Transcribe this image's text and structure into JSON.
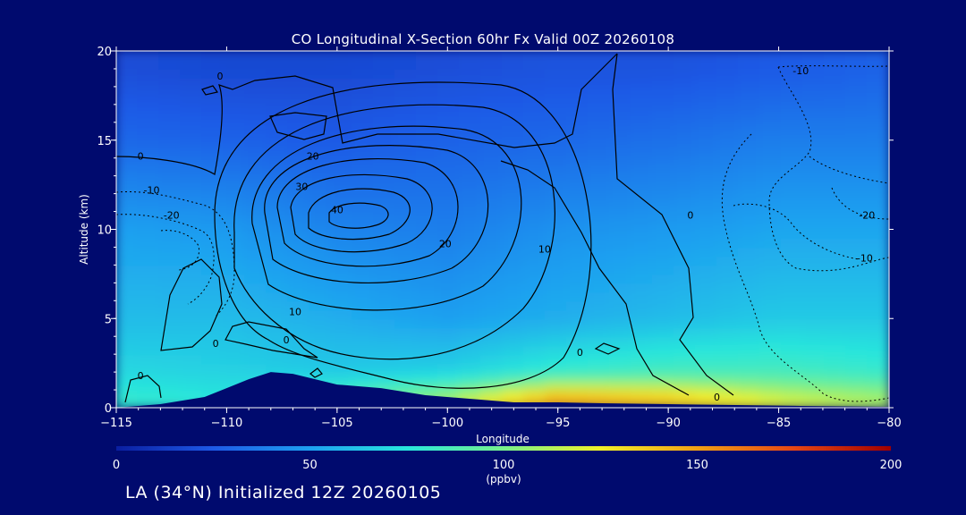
{
  "chart_data": {
    "type": "heatmap",
    "title": "CO Longitudinal X-Section 60hr  Fx Valid 00Z 20260108",
    "xlabel": "Longitude",
    "ylabel": "Altitude (km)",
    "xlim": [
      -115,
      -80
    ],
    "ylim": [
      0,
      20
    ],
    "x_ticks": [
      -115,
      -110,
      -105,
      -100,
      -95,
      -90,
      -85,
      -80
    ],
    "x_tick_labels": [
      "−115",
      "−110",
      "−105",
      "−100",
      "−95",
      "−90",
      "−85",
      "−80"
    ],
    "y_ticks": [
      0,
      5,
      10,
      15,
      20
    ],
    "y_tick_labels": [
      "0",
      "5",
      "10",
      "15",
      "20"
    ],
    "colorbar": {
      "min": 0,
      "max": 200,
      "ticks": [
        0,
        50,
        100,
        150,
        200
      ],
      "tick_labels": [
        "0",
        "50",
        "100",
        "150",
        "200"
      ],
      "units": "(ppbv)",
      "colors": [
        "#0a1ea0",
        "#1e5ae6",
        "#1ea0f0",
        "#28e6dc",
        "#78f08c",
        "#f0f028",
        "#f0a014",
        "#e64614",
        "#a00000"
      ]
    },
    "co_field_ppbv": {
      "altitudes_km": [
        0.5,
        2,
        5,
        10,
        15,
        19
      ],
      "rows": [
        {
          "lon": -115,
          "values": [
            80,
            70,
            60,
            50,
            30,
            20
          ]
        },
        {
          "lon": -110,
          "values": [
            75,
            68,
            60,
            48,
            28,
            18
          ]
        },
        {
          "lon": -105,
          "values": [
            90,
            65,
            55,
            40,
            25,
            18
          ]
        },
        {
          "lon": -100,
          "values": [
            110,
            68,
            50,
            38,
            28,
            20
          ]
        },
        {
          "lon": -95,
          "values": [
            150,
            80,
            55,
            45,
            30,
            22
          ]
        },
        {
          "lon": -90,
          "values": [
            140,
            85,
            60,
            48,
            33,
            22
          ]
        },
        {
          "lon": -85,
          "values": [
            120,
            85,
            65,
            52,
            38,
            25
          ]
        },
        {
          "lon": -80,
          "values": [
            110,
            80,
            65,
            52,
            38,
            28
          ]
        }
      ]
    },
    "contour_labels": [
      {
        "text": "0",
        "x": -110.3,
        "y": 18.6
      },
      {
        "text": "0",
        "x": -113.9,
        "y": 14.1
      },
      {
        "text": "-10",
        "x": -113.4,
        "y": 12.2
      },
      {
        "text": "-20",
        "x": -112.5,
        "y": 10.8
      },
      {
        "text": "20",
        "x": -106.1,
        "y": 14.1
      },
      {
        "text": "30",
        "x": -106.6,
        "y": 12.4
      },
      {
        "text": "40",
        "x": -105.0,
        "y": 11.1
      },
      {
        "text": "20",
        "x": -100.1,
        "y": 9.2
      },
      {
        "text": "10",
        "x": -95.6,
        "y": 8.9
      },
      {
        "text": "0",
        "x": -89.0,
        "y": 10.8
      },
      {
        "text": "10",
        "x": -106.9,
        "y": 5.4
      },
      {
        "text": "0",
        "x": -107.3,
        "y": 3.8
      },
      {
        "text": "0",
        "x": -110.5,
        "y": 3.6
      },
      {
        "text": "0",
        "x": -113.9,
        "y": 1.8
      },
      {
        "text": "0",
        "x": -94.0,
        "y": 3.1
      },
      {
        "text": "0",
        "x": -87.8,
        "y": 0.6
      },
      {
        "text": "-10",
        "x": -84.0,
        "y": 18.9
      },
      {
        "text": "-20",
        "x": -81.0,
        "y": 10.8
      },
      {
        "text": "-10",
        "x": -81.1,
        "y": 8.4
      }
    ],
    "terrain_km": [
      [
        -115,
        0
      ],
      [
        -113,
        0.2
      ],
      [
        -111,
        0.6
      ],
      [
        -110,
        1.1
      ],
      [
        -109,
        1.6
      ],
      [
        -108,
        2.0
      ],
      [
        -107,
        1.9
      ],
      [
        -106,
        1.6
      ],
      [
        -105,
        1.3
      ],
      [
        -103,
        1.1
      ],
      [
        -101,
        0.7
      ],
      [
        -99,
        0.5
      ],
      [
        -97,
        0.3
      ],
      [
        -95,
        0.3
      ],
      [
        -93,
        0.25
      ],
      [
        -90,
        0.2
      ],
      [
        -87,
        0.15
      ],
      [
        -84,
        0.1
      ],
      [
        -80,
        0.05
      ]
    ]
  },
  "footer": "LA (34°N) Initialized 12Z 20260105"
}
